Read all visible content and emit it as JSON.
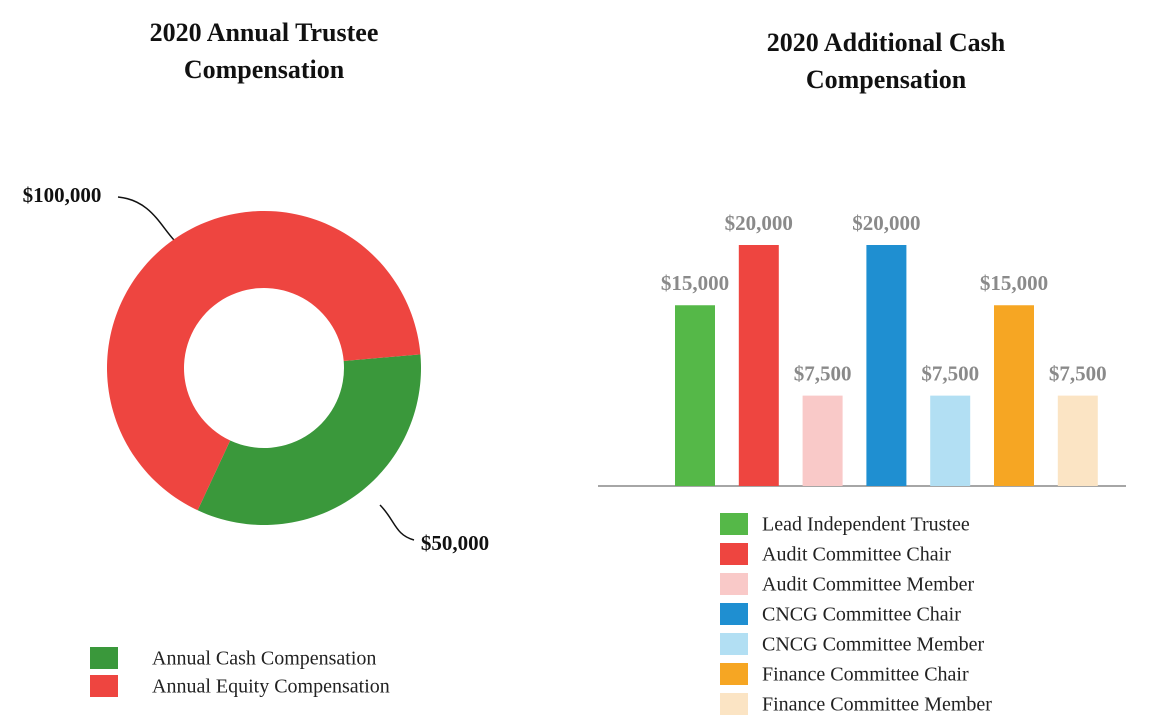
{
  "chart_data": [
    {
      "type": "pie",
      "title": "2020 Annual Trustee Compensation",
      "categories": [
        "Annual Cash Compensation",
        "Annual Equity Compensation"
      ],
      "values": [
        50000,
        100000
      ],
      "value_labels": [
        "$50,000",
        "$100,000"
      ],
      "colors": [
        "#3a983b",
        "#ee4540"
      ]
    },
    {
      "type": "bar",
      "title": "2020 Additional Cash Compensation",
      "categories": [
        "Lead Independent Trustee",
        "Audit Committee Chair",
        "Audit Committee Member",
        "CNCG Committee Chair",
        "CNCG Committee Member",
        "Finance Committee Chair",
        "Finance Committee Member"
      ],
      "values": [
        15000,
        20000,
        7500,
        20000,
        7500,
        15000,
        7500
      ],
      "value_labels": [
        "$15,000",
        "$20,000",
        "$7,500",
        "$20,000",
        "$7,500",
        "$15,000",
        "$7,500"
      ],
      "colors": [
        "#55b848",
        "#ee4540",
        "#f9c9c8",
        "#1f8fd1",
        "#b2dff3",
        "#f6a623",
        "#fbe4c4"
      ]
    }
  ]
}
